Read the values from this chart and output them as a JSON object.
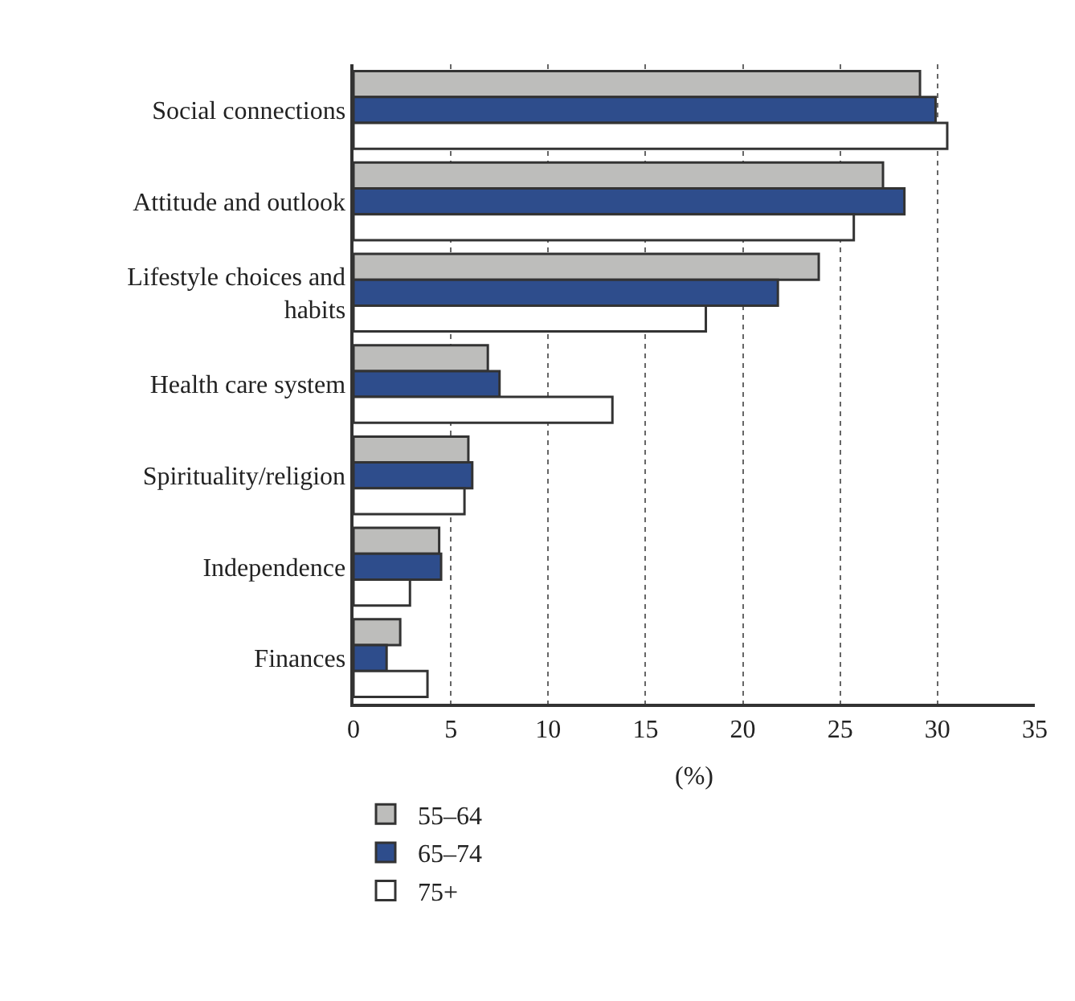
{
  "chart_data": {
    "type": "bar",
    "orientation": "horizontal",
    "xlabel": "(%)",
    "categories": [
      "Social connections",
      "Attitude and outlook",
      "Lifestyle choices and habits",
      "Health care system",
      "Spirituality/religion",
      "Independence",
      "Finances"
    ],
    "series": [
      {
        "name": "55–64",
        "color": "#bdbdbb",
        "values": [
          29.1,
          27.2,
          23.9,
          6.9,
          5.9,
          4.4,
          2.4
        ]
      },
      {
        "name": "65–74",
        "color": "#2e4d8c",
        "values": [
          29.9,
          28.3,
          21.8,
          7.5,
          6.1,
          4.5,
          1.7
        ]
      },
      {
        "name": "75+",
        "color": "#ffffff",
        "values": [
          30.5,
          25.7,
          18.1,
          13.3,
          5.7,
          2.9,
          3.8
        ]
      }
    ],
    "xlim": [
      0,
      35
    ],
    "xticks": [
      0,
      5,
      10,
      15,
      20,
      25,
      30,
      35
    ],
    "grid": "x",
    "legend": "bottom left"
  }
}
